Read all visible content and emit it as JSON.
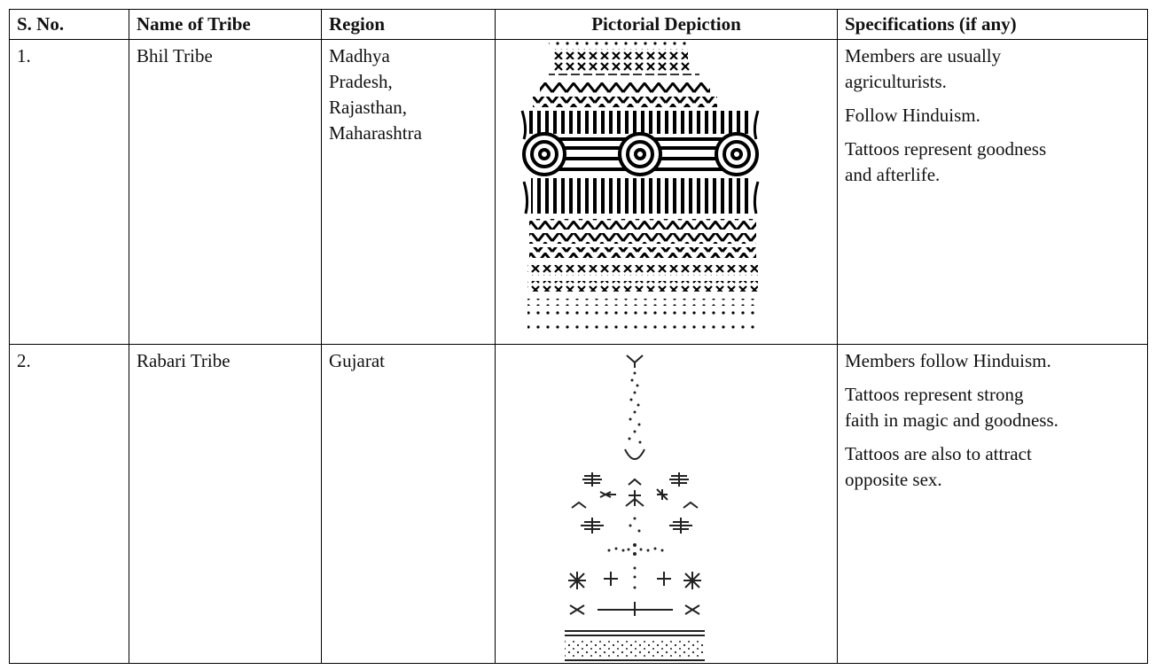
{
  "table": {
    "headers": [
      "S. No.",
      "Name of Tribe",
      "Region",
      "Pictorial Depiction",
      "Specifications (if any)"
    ],
    "rows": [
      {
        "s_no": "1.",
        "name": "Bhil Tribe",
        "region": [
          "Madhya",
          "Pradesh,",
          "Rajasthan,",
          "Maharashtra"
        ],
        "specifications": [
          [
            "Members are usually",
            "agriculturists."
          ],
          [
            "Follow Hinduism."
          ],
          [
            "Tattoos represent goodness",
            "and afterlife."
          ]
        ]
      },
      {
        "s_no": "2.",
        "name": "Rabari Tribe",
        "region": [
          "Gujarat"
        ],
        "specifications": [
          [
            "Members follow Hinduism."
          ],
          [
            "Tattoos represent strong",
            "faith in magic and goodness."
          ],
          [
            "Tattoos are also to attract",
            "opposite sex."
          ]
        ]
      }
    ]
  }
}
